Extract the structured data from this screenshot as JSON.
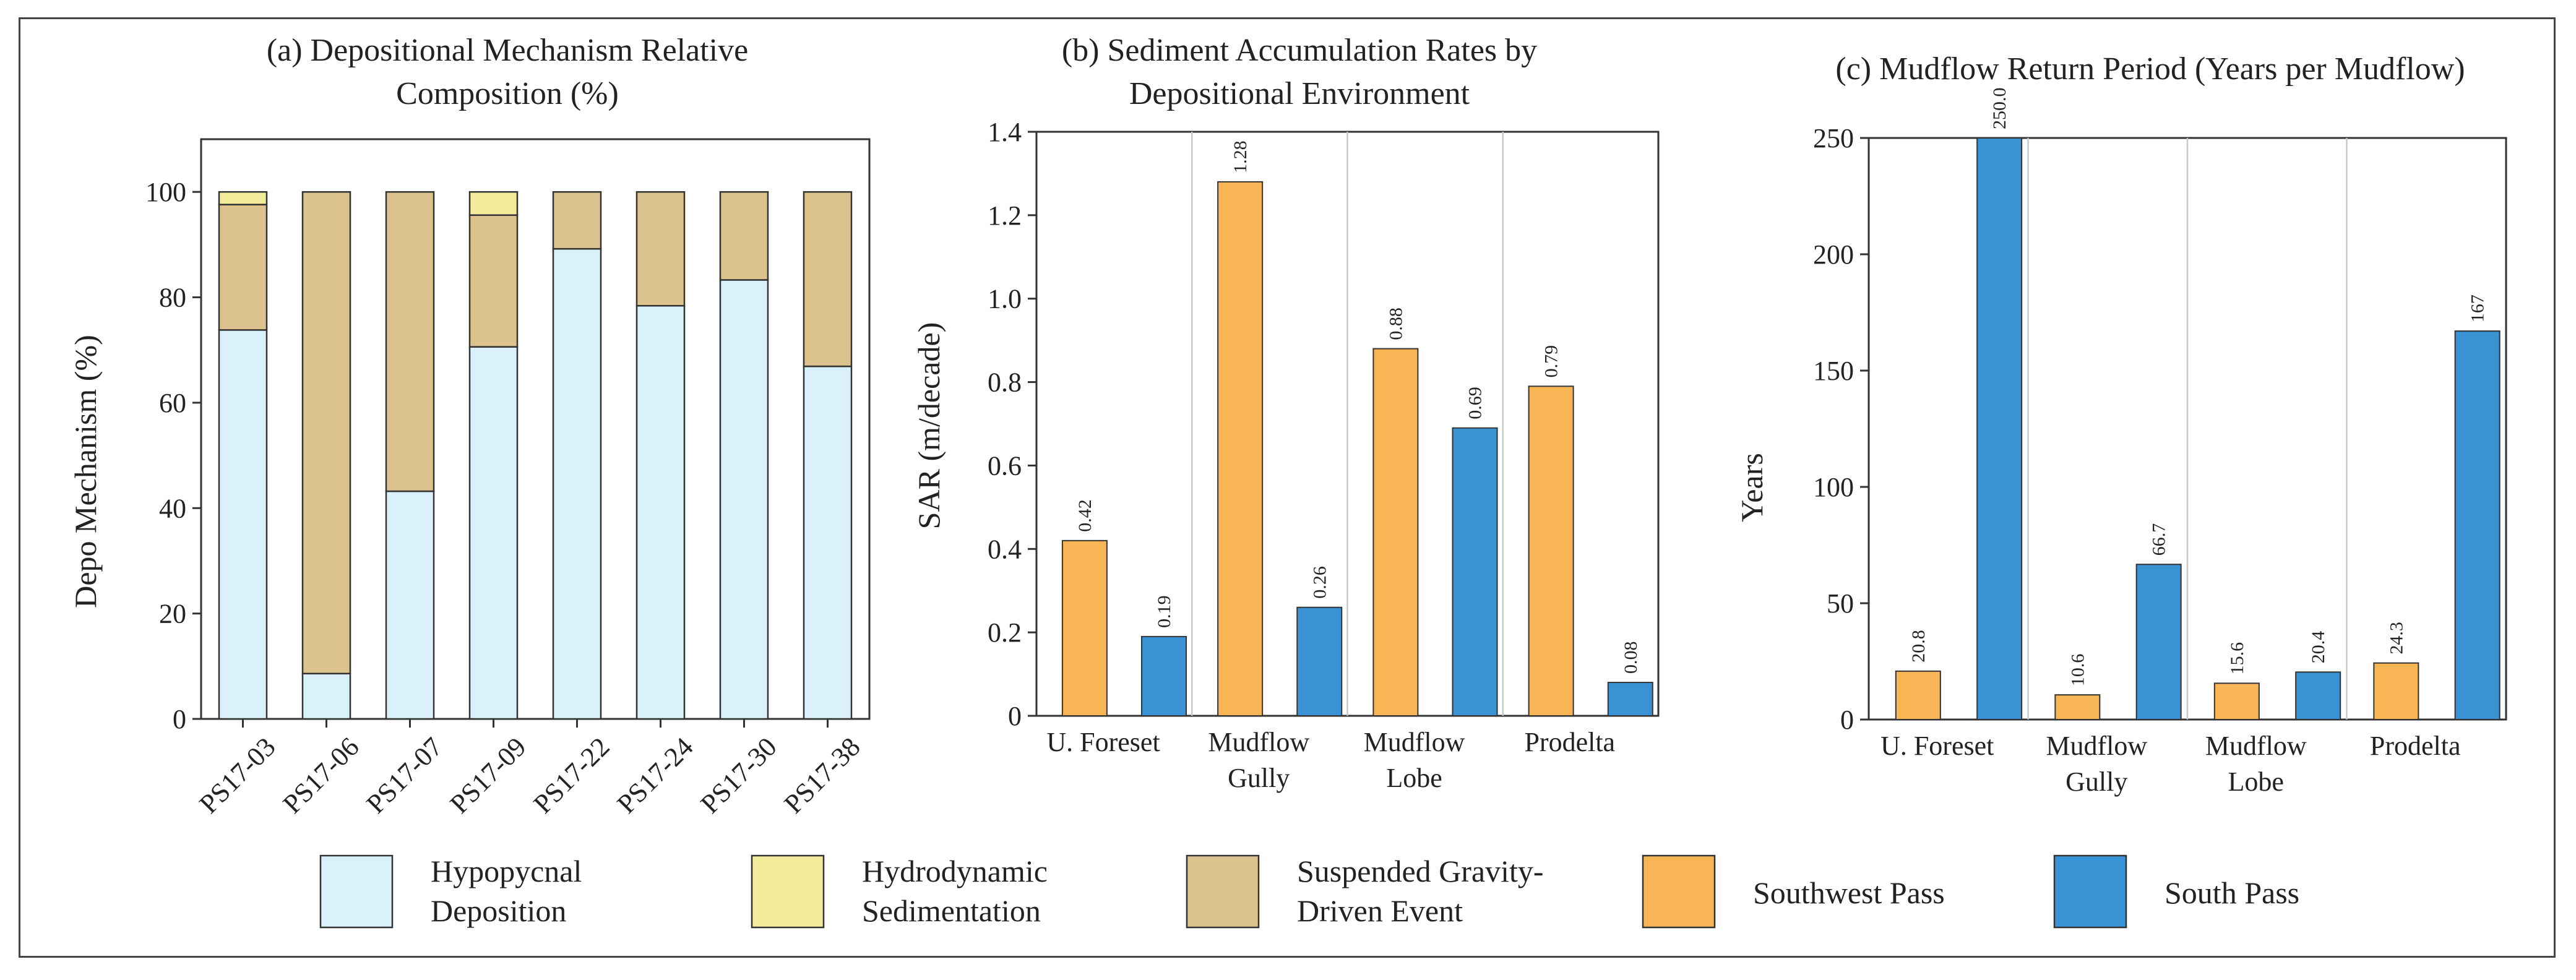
{
  "colors": {
    "hypopycnal": "#daf0fb",
    "hydrodynamic": "#f3ec9a",
    "suspended": "#dcc38e",
    "southwest_pass": "#f7b556",
    "south_pass": "#3892d4"
  },
  "legend": [
    {
      "label_lines": [
        "Hypopycnal",
        "Deposition"
      ],
      "color_key": "hypopycnal"
    },
    {
      "label_lines": [
        "Hydrodynamic",
        "Sedimentation"
      ],
      "color_key": "hydrodynamic"
    },
    {
      "label_lines": [
        "Suspended Gravity-",
        "Driven Event"
      ],
      "color_key": "suspended"
    },
    {
      "label_lines": [
        "Southwest Pass"
      ],
      "color_key": "southwest_pass"
    },
    {
      "label_lines": [
        "South Pass"
      ],
      "color_key": "south_pass"
    }
  ],
  "chart_data": [
    {
      "type": "bar",
      "stacked": true,
      "title_lines": [
        "(a) Depositional Mechanism Relative",
        "Composition (%)"
      ],
      "ylabel": "Depo Mechanism (%)",
      "xlabel": "",
      "ylim": [
        0,
        110
      ],
      "yticks": [
        0,
        20,
        40,
        60,
        80,
        100
      ],
      "grid": false,
      "categories": [
        "PS17-03",
        "PS17-06",
        "PS17-07",
        "PS17-09",
        "PS17-22",
        "PS17-24",
        "PS17-30",
        "PS17-38"
      ],
      "series": [
        {
          "name": "Hypopycnal Deposition",
          "color_key": "hypopycnal",
          "values": [
            73.8,
            8.6,
            43.2,
            70.6,
            89.2,
            78.4,
            83.3,
            66.9
          ]
        },
        {
          "name": "Suspended Gravity-Driven Event",
          "color_key": "suspended",
          "values": [
            23.8,
            91.4,
            56.8,
            25.0,
            10.8,
            21.6,
            16.7,
            33.1
          ]
        },
        {
          "name": "Hydrodynamic Sedimentation",
          "color_key": "hydrodynamic",
          "values": [
            2.4,
            0,
            0,
            4.4,
            0,
            0,
            0,
            0
          ]
        }
      ]
    },
    {
      "type": "bar",
      "title_lines": [
        "(b) Sediment Accumulation Rates by",
        "Depositional Environment"
      ],
      "ylabel": "SAR (m/decade)",
      "xlabel": "",
      "ylim": [
        0,
        1.4
      ],
      "yticks": [
        "0",
        "0.2",
        "0.4",
        "0.6",
        "0.8",
        "1.0",
        "1.2",
        "1.4"
      ],
      "grid": false,
      "categories": [
        [
          "U. Foreset"
        ],
        [
          "Mudflow",
          "Gully"
        ],
        [
          "Mudflow",
          "Lobe"
        ],
        [
          "Prodelta"
        ]
      ],
      "series": [
        {
          "name": "Southwest Pass",
          "color_key": "southwest_pass",
          "values": [
            0.42,
            1.28,
            0.88,
            0.79
          ],
          "labels": [
            "0.42",
            "1.28",
            "0.88",
            "0.79"
          ]
        },
        {
          "name": "South Pass",
          "color_key": "south_pass",
          "values": [
            0.19,
            0.26,
            0.69,
            0.08
          ],
          "labels": [
            "0.19",
            "0.26",
            "0.69",
            "0.08"
          ]
        }
      ]
    },
    {
      "type": "bar",
      "title_lines": [
        "(c) Mudflow Return Period (Years per Mudflow)"
      ],
      "ylabel": "Years",
      "xlabel": "",
      "ylim": [
        0,
        250
      ],
      "yticks": [
        "0",
        "50",
        "100",
        "150",
        "200",
        "250"
      ],
      "grid": false,
      "categories": [
        [
          "U. Foreset"
        ],
        [
          "Mudflow",
          "Gully"
        ],
        [
          "Mudflow",
          "Lobe"
        ],
        [
          "Prodelta"
        ]
      ],
      "series": [
        {
          "name": "Southwest Pass",
          "color_key": "southwest_pass",
          "values": [
            20.8,
            10.6,
            15.6,
            24.3
          ],
          "labels": [
            "20.8",
            "10.6",
            "15.6",
            "24.3"
          ]
        },
        {
          "name": "South Pass",
          "color_key": "south_pass",
          "values": [
            250.0,
            66.7,
            20.4,
            167
          ],
          "labels": [
            "250.0",
            "66.7",
            "20.4",
            "167"
          ]
        }
      ]
    }
  ]
}
